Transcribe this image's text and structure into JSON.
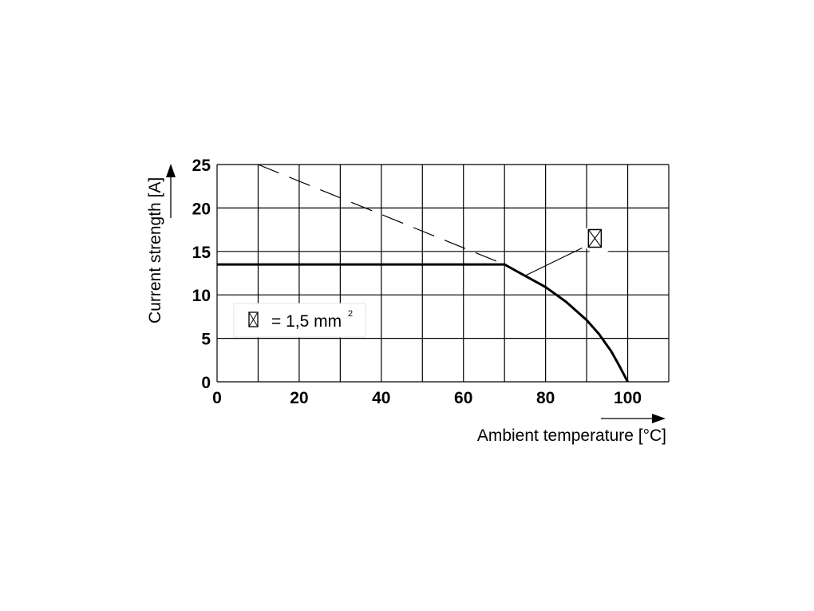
{
  "chart_data": {
    "type": "line",
    "xlabel": "Ambient temperature [°C]",
    "ylabel": "Current strength [A]",
    "xlim": [
      0,
      110
    ],
    "ylim": [
      0,
      25
    ],
    "x_ticks": [
      0,
      20,
      40,
      60,
      80,
      100
    ],
    "y_ticks": [
      0,
      5,
      10,
      15,
      20,
      25
    ],
    "grid": true,
    "legend": {
      "text": "= 1,5 mm",
      "superscript": "2",
      "placement": "left-middle"
    },
    "series": [
      {
        "style": "solid",
        "x": [
          0,
          70,
          75,
          80,
          85,
          90,
          93,
          96,
          98,
          100
        ],
        "y": [
          13.5,
          13.5,
          12.2,
          10.9,
          9.2,
          7.1,
          5.5,
          3.5,
          1.8,
          0
        ]
      },
      {
        "style": "dashed",
        "x": [
          10,
          70
        ],
        "y": [
          25,
          13.5
        ]
      }
    ],
    "annotations": [
      {
        "type": "conductor-marker",
        "x": 92,
        "y": 16.5,
        "points_to": [
          75,
          12.2
        ]
      }
    ]
  }
}
